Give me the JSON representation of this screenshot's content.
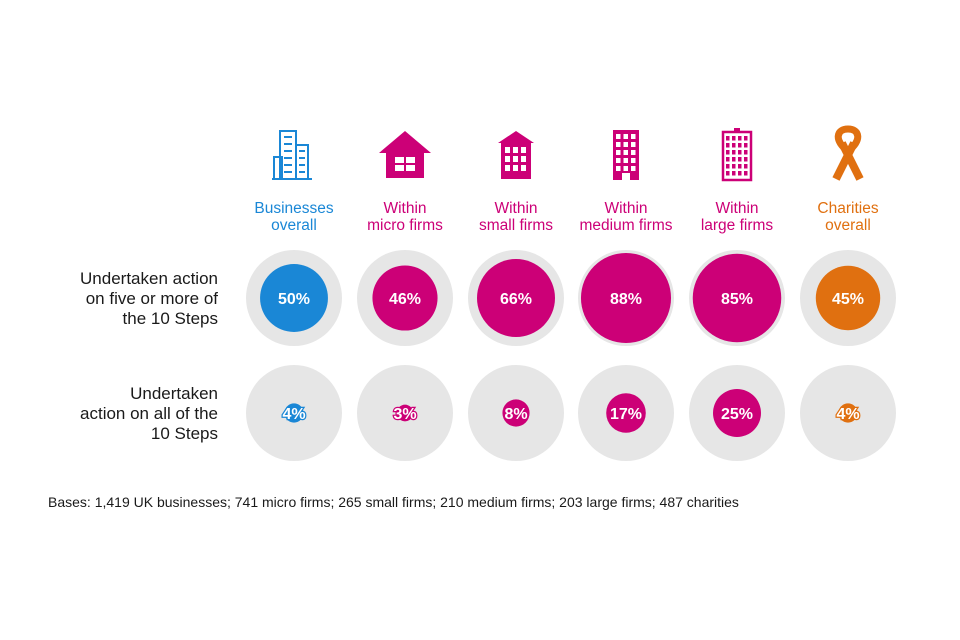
{
  "colors": {
    "business": "#1a87d6",
    "firms": "#cc0077",
    "charities": "#e07010",
    "track": "#e6e6e6"
  },
  "chart_data": {
    "type": "bubble",
    "columns": [
      {
        "label_lines": [
          "Businesses",
          "overall"
        ],
        "group": "business",
        "icon": "office-buildings-icon"
      },
      {
        "label_lines": [
          "Within",
          "micro firms"
        ],
        "group": "firms",
        "icon": "house-icon"
      },
      {
        "label_lines": [
          "Within",
          "small firms"
        ],
        "group": "firms",
        "icon": "small-building-icon"
      },
      {
        "label_lines": [
          "Within",
          "medium  firms"
        ],
        "group": "firms",
        "icon": "medium-building-icon"
      },
      {
        "label_lines": [
          "Within",
          "large firms"
        ],
        "group": "firms",
        "icon": "large-building-icon"
      },
      {
        "label_lines": [
          "Charities",
          "overall"
        ],
        "group": "charities",
        "icon": "ribbon-icon"
      }
    ],
    "rows": [
      {
        "label_lines": [
          "Undertaken action",
          "on five or more of",
          "the 10 Steps"
        ],
        "values": [
          50,
          46,
          66,
          88,
          85,
          45
        ],
        "labels": [
          "50%",
          "46%",
          "66%",
          "88%",
          "85%",
          "45%"
        ]
      },
      {
        "label_lines": [
          "Undertaken",
          "action on all of the",
          "10 Steps"
        ],
        "values": [
          4,
          3,
          8,
          17,
          25,
          4
        ],
        "labels": [
          "4%",
          "3%",
          "8%",
          "17%",
          "25%",
          "4%"
        ]
      }
    ]
  },
  "bases": "Bases: 1,419 UK businesses; 741 micro firms; 265 small firms; 210 medium firms; 203 large firms; 487 charities"
}
